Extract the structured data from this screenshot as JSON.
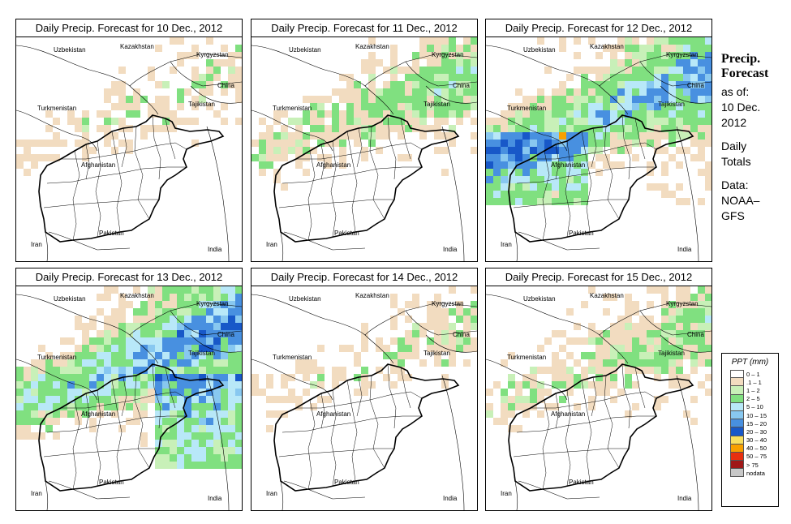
{
  "panels": [
    {
      "title": "Daily Precip. Forecast for  10 Dec., 2012"
    },
    {
      "title": "Daily Precip. Forecast for  11 Dec., 2012"
    },
    {
      "title": "Daily Precip. Forecast for  12 Dec., 2012"
    },
    {
      "title": "Daily Precip. Forecast for  13 Dec., 2012"
    },
    {
      "title": "Daily Precip. Forecast for  14 Dec., 2012"
    },
    {
      "title": "Daily Precip. Forecast for  15 Dec., 2012"
    }
  ],
  "map_labels": {
    "uzbekistan": "Uzbekistan",
    "kazakhstan": "Kazakhstan",
    "kyrgyzstan": "Kyrgyzstan",
    "china": "China",
    "tajikistan": "Tajikistan",
    "turkmenistan": "Turkmenistan",
    "afghanistan": "Afghanistan",
    "pakistan": "Pakistan",
    "iran": "Iran",
    "india": "India"
  },
  "sidebar": {
    "title_line1": "Precip.",
    "title_line2": "Forecast",
    "asof_label": "as of:",
    "date_line1": "10 Dec.",
    "date_line2": "2012",
    "totals_line1": "Daily",
    "totals_line2": "Totals",
    "data_line1": "Data:",
    "data_line2": "NOAA–",
    "data_line3": "GFS"
  },
  "legend": {
    "title": "PPT (mm)",
    "entries": [
      {
        "label": "0 – 1",
        "color": "#ffffff"
      },
      {
        "label": ".1 – 1",
        "color": "#f2dcc0"
      },
      {
        "label": "1 – 2",
        "color": "#c8f0b8"
      },
      {
        "label": "2 – 5",
        "color": "#80e080"
      },
      {
        "label": "5 – 10",
        "color": "#b8e8f8"
      },
      {
        "label": "10 – 15",
        "color": "#88c8f0"
      },
      {
        "label": "15 – 20",
        "color": "#4890e0"
      },
      {
        "label": "20 – 30",
        "color": "#1858c8"
      },
      {
        "label": "30 – 40",
        "color": "#f8e060"
      },
      {
        "label": "40 – 50",
        "color": "#f8a000"
      },
      {
        "label": "50 – 75",
        "color": "#e83010"
      },
      {
        "label": "> 75",
        "color": "#a01818"
      },
      {
        "label": "nodata",
        "color": "#c8c8c8"
      }
    ]
  }
}
